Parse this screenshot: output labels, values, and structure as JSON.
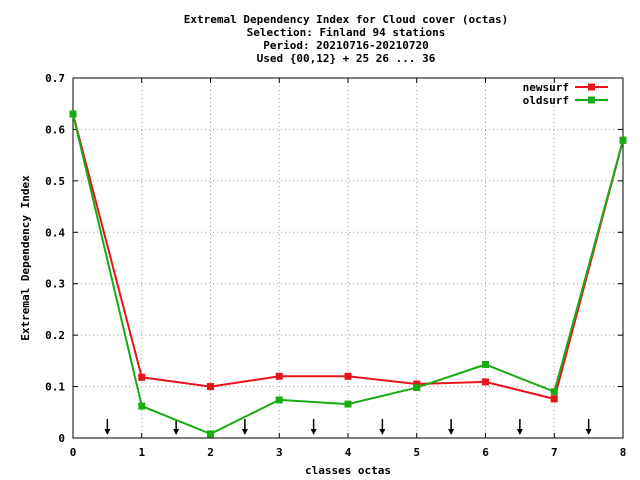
{
  "chart_data": {
    "type": "line",
    "title_lines": [
      "Extremal Dependency Index  for Cloud cover (octas)",
      "Selection: Finland     94 stations",
      "Period: 20210716-20210720",
      "Used {00,12} + 25 26 ... 36"
    ],
    "xlabel": "classes octas",
    "ylabel": "Extremal Dependency Index",
    "xlim": [
      0,
      8
    ],
    "ylim": [
      0,
      0.7
    ],
    "x_ticks": [
      0,
      1,
      2,
      3,
      4,
      5,
      6,
      7,
      8
    ],
    "x_tick_labels": [
      "0",
      "1",
      "2",
      "3",
      "4",
      "5",
      "6",
      "7",
      "8"
    ],
    "y_ticks": [
      0,
      0.1,
      0.2,
      0.3,
      0.4,
      0.5,
      0.6,
      0.7
    ],
    "y_tick_labels": [
      "0",
      "0.1",
      "0.2",
      "0.3",
      "0.4",
      "0.5",
      "0.6",
      "0.7"
    ],
    "grid": true,
    "legend_position": "top-right",
    "x": [
      0,
      1,
      2,
      3,
      4,
      5,
      6,
      7,
      8
    ],
    "series": [
      {
        "name": "newsurf",
        "color": "#e8141c",
        "values": [
          0.63,
          0.118,
          0.1,
          0.12,
          0.12,
          0.105,
          0.109,
          0.076,
          0.579
        ]
      },
      {
        "name": "oldsurf",
        "color": "#1aab14",
        "values": [
          0.63,
          0.062,
          0.008,
          0.074,
          0.066,
          0.098,
          0.143,
          0.09,
          0.579
        ]
      }
    ],
    "arrow_markers_x": [
      0.5,
      1.5,
      2.5,
      3.5,
      4.5,
      5.5,
      6.5,
      7.5
    ]
  }
}
